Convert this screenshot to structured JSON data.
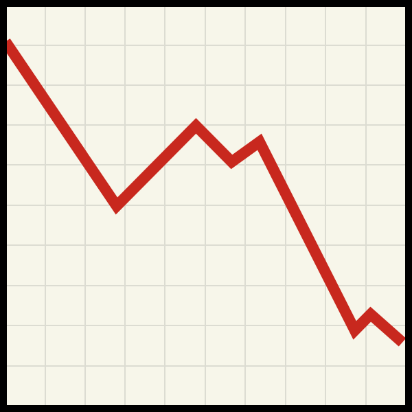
{
  "chart_data": {
    "type": "line",
    "grid": true,
    "xlim": [
      0,
      10
    ],
    "ylim": [
      0,
      10
    ],
    "x": [
      0,
      2.8,
      4.8,
      5.7,
      6.4,
      8.8,
      9.2,
      10
    ],
    "series": [
      {
        "values": [
          9.1,
          5.0,
          7.0,
          6.1,
          6.6,
          1.9,
          2.3,
          1.6
        ]
      }
    ]
  },
  "colors": {
    "background": "#f7f6ea",
    "grid": "#dcdcd2",
    "frame": "#000000",
    "line": "#c8281e"
  }
}
